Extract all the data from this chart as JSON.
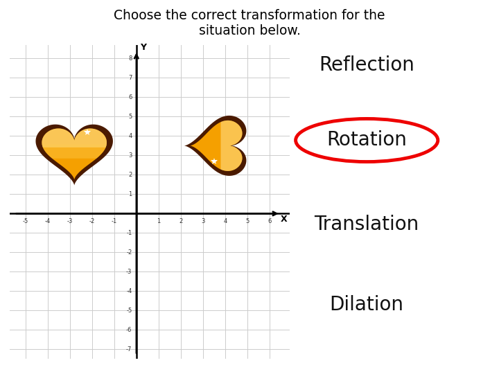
{
  "title_line1": "Choose the correct transformation for the",
  "title_line2": "situation below.",
  "title_fontsize": 13.5,
  "options": [
    "Reflection",
    "Rotation",
    "Translation",
    "Dilation"
  ],
  "circled_option": "Rotation",
  "circle_color": "#ee0000",
  "option_fontsize": 20,
  "background_color": "#ffffff",
  "grid_color": "#cccccc",
  "axis_color": "#000000",
  "x_min": -5,
  "x_max": 6,
  "y_min": -7,
  "y_max": 8,
  "heart_color_outer": "#4a1a00",
  "heart_color_inner": "#f5a000",
  "heart_color_highlight": "#ffe090",
  "heart_color_light": "#ffd060",
  "bottom_bar_color": "#c8922a",
  "tick_fontsize": 6.0
}
